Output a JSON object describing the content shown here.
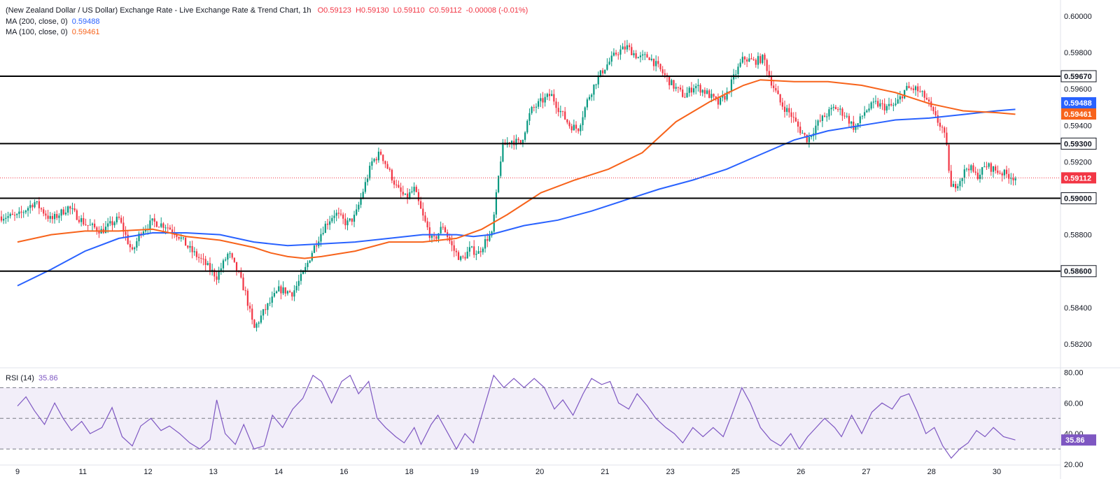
{
  "header": {
    "title": "(New Zealand Dollar / US Dollar) Exchange Rate - Live Exchange Rate & Trend Chart, 1h",
    "ohlc": {
      "o": "O0.59123",
      "h": "H0.59130",
      "l": "L0.59110",
      "c": "C0.59112",
      "chg": "-0.00008 (-0.01%)"
    },
    "ma200_label": "MA (200, close, 0)",
    "ma200_value": "0.59488",
    "ma100_label": "MA (100, close, 0)",
    "ma100_value": "0.59461",
    "rsi_label": "RSI (14)",
    "rsi_value": "35.86"
  },
  "colors": {
    "up": "#089981",
    "down": "#f23645",
    "ma200": "#2962ff",
    "ma100": "#f7631b",
    "rsi": "#7e57c2",
    "level": "#000000"
  },
  "chart_data": {
    "type": "candlestick",
    "price_axis": {
      "range": [
        0.581,
        0.6005
      ],
      "ticks": [
        "0.60000",
        "0.59800",
        "0.59600",
        "0.59400",
        "0.59200",
        "0.58800",
        "0.58400",
        "0.58200"
      ]
    },
    "x_labels": [
      "9",
      "11",
      "12",
      "13",
      "14",
      "16",
      "18",
      "19",
      "20",
      "21",
      "23",
      "25",
      "26",
      "27",
      "28",
      "30"
    ],
    "levels": [
      {
        "value": 0.5967,
        "label": "0.59670"
      },
      {
        "value": 0.593,
        "label": "0.59300"
      },
      {
        "value": 0.59,
        "label": "0.59000"
      },
      {
        "value": 0.586,
        "label": "0.58600"
      }
    ],
    "last_price": {
      "value": 0.59112,
      "label": "0.59112"
    },
    "ma_tags": [
      {
        "series": "ma200",
        "value": 0.59488,
        "label": "0.59488"
      },
      {
        "series": "ma100",
        "value": 0.59461,
        "label": "0.59461"
      }
    ],
    "price_path": [
      [
        0.0,
        0.589
      ],
      [
        1.0,
        0.5898
      ],
      [
        2.0,
        0.5888
      ],
      [
        3.0,
        0.5895
      ],
      [
        4.0,
        0.5886
      ],
      [
        5.0,
        0.5882
      ],
      [
        6.0,
        0.5889
      ],
      [
        6.8,
        0.587
      ],
      [
        7.3,
        0.5882
      ],
      [
        8.0,
        0.5887
      ],
      [
        8.8,
        0.5885
      ],
      [
        9.5,
        0.588
      ],
      [
        10.2,
        0.5872
      ],
      [
        11.0,
        0.5865
      ],
      [
        11.8,
        0.5857
      ],
      [
        12.5,
        0.587
      ],
      [
        13.1,
        0.5858
      ],
      [
        13.5,
        0.5848
      ],
      [
        14.0,
        0.5828
      ],
      [
        14.6,
        0.5838
      ],
      [
        15.5,
        0.585
      ],
      [
        16.3,
        0.5848
      ],
      [
        17.0,
        0.586
      ],
      [
        17.5,
        0.5872
      ],
      [
        18.2,
        0.5885
      ],
      [
        18.8,
        0.5892
      ],
      [
        19.5,
        0.5886
      ],
      [
        20.0,
        0.589
      ],
      [
        20.5,
        0.5905
      ],
      [
        21.0,
        0.592
      ],
      [
        21.5,
        0.5925
      ],
      [
        22.0,
        0.5915
      ],
      [
        22.5,
        0.5905
      ],
      [
        23.0,
        0.59
      ],
      [
        23.5,
        0.5905
      ],
      [
        24.0,
        0.589
      ],
      [
        24.6,
        0.5876
      ],
      [
        25.2,
        0.5885
      ],
      [
        25.8,
        0.5872
      ],
      [
        26.3,
        0.5866
      ],
      [
        26.8,
        0.5872
      ],
      [
        27.3,
        0.587
      ],
      [
        27.8,
        0.5878
      ],
      [
        28.1,
        0.588
      ],
      [
        28.4,
        0.5905
      ],
      [
        28.7,
        0.5928
      ],
      [
        29.2,
        0.5932
      ],
      [
        29.8,
        0.593
      ],
      [
        30.4,
        0.5948
      ],
      [
        31.0,
        0.5953
      ],
      [
        31.6,
        0.5957
      ],
      [
        32.0,
        0.595
      ],
      [
        32.7,
        0.594
      ],
      [
        33.2,
        0.5938
      ],
      [
        33.8,
        0.5955
      ],
      [
        34.3,
        0.5965
      ],
      [
        34.8,
        0.5972
      ],
      [
        35.5,
        0.598
      ],
      [
        36.1,
        0.5983
      ],
      [
        36.8,
        0.5977
      ],
      [
        37.4,
        0.5978
      ],
      [
        38.1,
        0.597
      ],
      [
        38.8,
        0.5962
      ],
      [
        39.5,
        0.5956
      ],
      [
        40.1,
        0.5962
      ],
      [
        40.8,
        0.5958
      ],
      [
        41.5,
        0.5952
      ],
      [
        42.0,
        0.5957
      ],
      [
        42.5,
        0.5968
      ],
      [
        43.0,
        0.5977
      ],
      [
        43.6,
        0.5975
      ],
      [
        44.2,
        0.5977
      ],
      [
        44.6,
        0.5965
      ],
      [
        45.2,
        0.5952
      ],
      [
        45.8,
        0.5946
      ],
      [
        46.3,
        0.5938
      ],
      [
        46.8,
        0.5932
      ],
      [
        47.3,
        0.594
      ],
      [
        47.8,
        0.5945
      ],
      [
        48.4,
        0.595
      ],
      [
        49.0,
        0.5946
      ],
      [
        49.6,
        0.5938
      ],
      [
        50.2,
        0.5948
      ],
      [
        50.8,
        0.5952
      ],
      [
        51.4,
        0.595
      ],
      [
        52.0,
        0.5951
      ],
      [
        52.6,
        0.596
      ],
      [
        53.2,
        0.596
      ],
      [
        53.8,
        0.5955
      ],
      [
        54.3,
        0.5945
      ],
      [
        54.8,
        0.5938
      ],
      [
        55.0,
        0.593
      ],
      [
        55.3,
        0.5905
      ],
      [
        55.8,
        0.591
      ],
      [
        56.3,
        0.5918
      ],
      [
        56.8,
        0.5912
      ],
      [
        57.4,
        0.5918
      ],
      [
        58.0,
        0.5915
      ],
      [
        58.6,
        0.5913
      ],
      [
        59.1,
        0.59112
      ]
    ],
    "series": [
      {
        "name": "MA (200, close, 0)",
        "key": "ma200",
        "values": [
          [
            0.0,
            0.5852
          ],
          [
            2.0,
            0.5861
          ],
          [
            4.0,
            0.5871
          ],
          [
            6.0,
            0.5878
          ],
          [
            8.0,
            0.5881
          ],
          [
            10.0,
            0.5881
          ],
          [
            12.0,
            0.588
          ],
          [
            14.0,
            0.5876
          ],
          [
            16.0,
            0.5874
          ],
          [
            18.0,
            0.5875
          ],
          [
            20.0,
            0.5876
          ],
          [
            22.0,
            0.5878
          ],
          [
            24.0,
            0.588
          ],
          [
            26.0,
            0.588
          ],
          [
            27.0,
            0.5879
          ],
          [
            28.0,
            0.588
          ],
          [
            30.0,
            0.5885
          ],
          [
            32.0,
            0.5888
          ],
          [
            34.0,
            0.5893
          ],
          [
            36.0,
            0.5899
          ],
          [
            38.0,
            0.5905
          ],
          [
            40.0,
            0.591
          ],
          [
            42.0,
            0.5916
          ],
          [
            44.0,
            0.5924
          ],
          [
            46.0,
            0.5932
          ],
          [
            48.0,
            0.5937
          ],
          [
            50.0,
            0.594
          ],
          [
            52.0,
            0.5943
          ],
          [
            54.0,
            0.5944
          ],
          [
            56.0,
            0.5946
          ],
          [
            58.0,
            0.5948
          ],
          [
            59.1,
            0.59488
          ]
        ]
      },
      {
        "name": "MA (100, close, 0)",
        "key": "ma100",
        "values": [
          [
            0.0,
            0.5876
          ],
          [
            2.0,
            0.588
          ],
          [
            4.0,
            0.5882
          ],
          [
            6.0,
            0.5882
          ],
          [
            8.0,
            0.5883
          ],
          [
            10.0,
            0.5879
          ],
          [
            12.0,
            0.5877
          ],
          [
            14.0,
            0.5873
          ],
          [
            15.0,
            0.587
          ],
          [
            16.0,
            0.5868
          ],
          [
            17.0,
            0.5867
          ],
          [
            18.0,
            0.5868
          ],
          [
            20.0,
            0.5871
          ],
          [
            22.0,
            0.5876
          ],
          [
            24.0,
            0.5876
          ],
          [
            26.0,
            0.5878
          ],
          [
            27.5,
            0.5883
          ],
          [
            29.0,
            0.5891
          ],
          [
            31.0,
            0.5903
          ],
          [
            33.0,
            0.591
          ],
          [
            35.0,
            0.5916
          ],
          [
            37.0,
            0.5925
          ],
          [
            39.0,
            0.5942
          ],
          [
            41.0,
            0.5953
          ],
          [
            43.0,
            0.5962
          ],
          [
            44.0,
            0.5965
          ],
          [
            46.0,
            0.5964
          ],
          [
            48.0,
            0.5964
          ],
          [
            50.0,
            0.5962
          ],
          [
            52.0,
            0.5958
          ],
          [
            53.0,
            0.5955
          ],
          [
            54.0,
            0.5952
          ],
          [
            55.0,
            0.595
          ],
          [
            56.0,
            0.5948
          ],
          [
            58.0,
            0.5947
          ],
          [
            59.1,
            0.59461
          ]
        ]
      }
    ],
    "rsi": {
      "range": [
        20,
        82
      ],
      "ticks": [
        "80.00",
        "60.00",
        "40.00",
        "20.00"
      ],
      "band": [
        30,
        70
      ],
      "mid": 50,
      "path": [
        [
          0.0,
          58
        ],
        [
          0.5,
          64
        ],
        [
          1.0,
          55
        ],
        [
          1.6,
          46
        ],
        [
          2.2,
          60
        ],
        [
          2.7,
          50
        ],
        [
          3.2,
          42
        ],
        [
          3.8,
          48
        ],
        [
          4.3,
          40
        ],
        [
          5.0,
          44
        ],
        [
          5.6,
          57
        ],
        [
          6.2,
          38
        ],
        [
          6.8,
          32
        ],
        [
          7.3,
          45
        ],
        [
          7.9,
          50
        ],
        [
          8.5,
          42
        ],
        [
          9.0,
          45
        ],
        [
          9.6,
          40
        ],
        [
          10.2,
          34
        ],
        [
          10.8,
          30
        ],
        [
          11.4,
          36
        ],
        [
          11.8,
          62
        ],
        [
          12.3,
          40
        ],
        [
          12.9,
          33
        ],
        [
          13.4,
          46
        ],
        [
          14.0,
          30
        ],
        [
          14.6,
          32
        ],
        [
          15.1,
          52
        ],
        [
          15.7,
          44
        ],
        [
          16.3,
          56
        ],
        [
          16.9,
          63
        ],
        [
          17.5,
          78
        ],
        [
          18.0,
          74
        ],
        [
          18.6,
          60
        ],
        [
          19.2,
          74
        ],
        [
          19.7,
          78
        ],
        [
          20.2,
          66
        ],
        [
          20.8,
          74
        ],
        [
          21.3,
          50
        ],
        [
          21.8,
          44
        ],
        [
          22.4,
          38
        ],
        [
          22.9,
          34
        ],
        [
          23.5,
          44
        ],
        [
          23.9,
          33
        ],
        [
          24.5,
          46
        ],
        [
          24.9,
          52
        ],
        [
          25.5,
          40
        ],
        [
          26.0,
          30
        ],
        [
          26.5,
          40
        ],
        [
          27.0,
          34
        ],
        [
          27.5,
          52
        ],
        [
          28.2,
          78
        ],
        [
          28.8,
          70
        ],
        [
          29.4,
          76
        ],
        [
          30.0,
          70
        ],
        [
          30.6,
          76
        ],
        [
          31.2,
          70
        ],
        [
          31.8,
          56
        ],
        [
          32.3,
          62
        ],
        [
          32.9,
          52
        ],
        [
          33.5,
          66
        ],
        [
          34.0,
          76
        ],
        [
          34.6,
          72
        ],
        [
          35.1,
          74
        ],
        [
          35.6,
          60
        ],
        [
          36.2,
          56
        ],
        [
          36.7,
          66
        ],
        [
          37.3,
          58
        ],
        [
          37.8,
          50
        ],
        [
          38.4,
          44
        ],
        [
          38.9,
          40
        ],
        [
          39.4,
          34
        ],
        [
          40.0,
          44
        ],
        [
          40.6,
          38
        ],
        [
          41.2,
          44
        ],
        [
          41.8,
          38
        ],
        [
          42.3,
          52
        ],
        [
          42.9,
          70
        ],
        [
          43.4,
          60
        ],
        [
          44.0,
          44
        ],
        [
          44.6,
          36
        ],
        [
          45.2,
          32
        ],
        [
          45.8,
          40
        ],
        [
          46.3,
          30
        ],
        [
          46.8,
          38
        ],
        [
          47.3,
          44
        ],
        [
          47.8,
          50
        ],
        [
          48.4,
          44
        ],
        [
          48.8,
          38
        ],
        [
          49.4,
          52
        ],
        [
          50.0,
          40
        ],
        [
          50.6,
          54
        ],
        [
          51.2,
          60
        ],
        [
          51.8,
          56
        ],
        [
          52.3,
          64
        ],
        [
          52.8,
          66
        ],
        [
          53.3,
          54
        ],
        [
          53.8,
          40
        ],
        [
          54.3,
          44
        ],
        [
          54.8,
          32
        ],
        [
          55.3,
          24
        ],
        [
          55.8,
          30
        ],
        [
          56.3,
          34
        ],
        [
          56.8,
          42
        ],
        [
          57.3,
          38
        ],
        [
          57.8,
          44
        ],
        [
          58.4,
          38
        ],
        [
          59.1,
          35.86
        ]
      ]
    }
  }
}
